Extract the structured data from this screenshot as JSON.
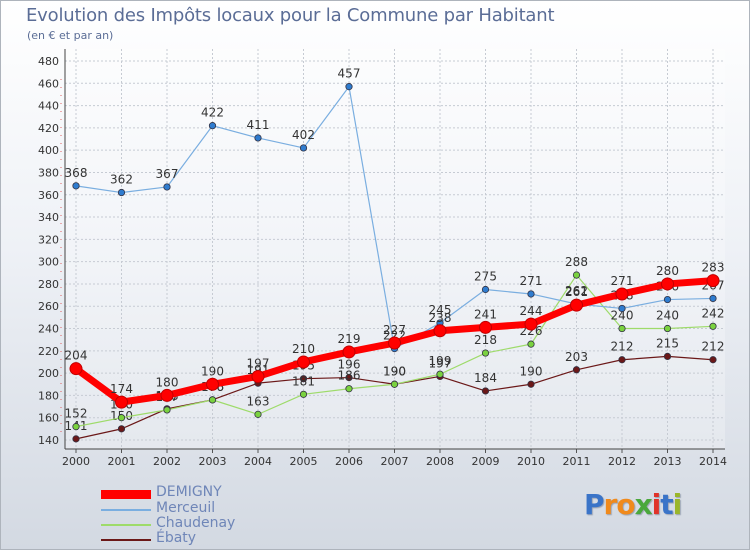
{
  "title": "Evolution des Impôts locaux pour la Commune par Habitant",
  "subtitle": "(en € et par an)",
  "logo_text": [
    "P",
    "r",
    "o",
    "x",
    "i",
    "t",
    "i"
  ],
  "logo_colors": [
    "#3a74c8",
    "#f08a1c",
    "#f08a1c",
    "#4aa83c",
    "#e0332a",
    "#3a74c8",
    "#9ab62a"
  ],
  "chart_data": {
    "type": "line",
    "title": "Evolution des Impôts locaux pour la Commune par Habitant",
    "ylabel": "(en € et par an)",
    "xlabel": "",
    "ylim": [
      140,
      480
    ],
    "yticks": [
      140,
      160,
      180,
      200,
      220,
      240,
      260,
      280,
      300,
      320,
      340,
      360,
      380,
      400,
      420,
      440,
      460,
      480
    ],
    "categories": [
      "2000",
      "2001",
      "2002",
      "2003",
      "2004",
      "2005",
      "2006",
      "2007",
      "2008",
      "2009",
      "2010",
      "2011",
      "2012",
      "2013",
      "2014"
    ],
    "series": [
      {
        "name": "Ébaty",
        "color": "#6b1818",
        "point": "#6b1818",
        "width": 1.2,
        "values": [
          141,
          150,
          168,
          176,
          191,
          195,
          196,
          190,
          197,
          184,
          190,
          203,
          212,
          215,
          212
        ]
      },
      {
        "name": "Chaudenay",
        "color": "#9edb6a",
        "point": "#7ad23f",
        "width": 1.2,
        "values": [
          152,
          160,
          167,
          176,
          163,
          181,
          186,
          190,
          199,
          218,
          226,
          288,
          240,
          240,
          242
        ]
      },
      {
        "name": "Merceuil",
        "color": "#7aaee0",
        "point": "#2f7ccf",
        "width": 1.2,
        "values": [
          368,
          362,
          367,
          422,
          411,
          402,
          457,
          222,
          245,
          275,
          271,
          262,
          258,
          266,
          267
        ]
      },
      {
        "name": "DEMIGNY",
        "color": "#ff0000",
        "point": "#ff0000",
        "width": 7,
        "values": [
          204,
          174,
          180,
          190,
          197,
          210,
          219,
          227,
          238,
          241,
          244,
          261,
          271,
          280,
          283
        ]
      }
    ],
    "legend": [
      "DEMIGNY",
      "Merceuil",
      "Chaudenay",
      "Ébaty"
    ]
  }
}
